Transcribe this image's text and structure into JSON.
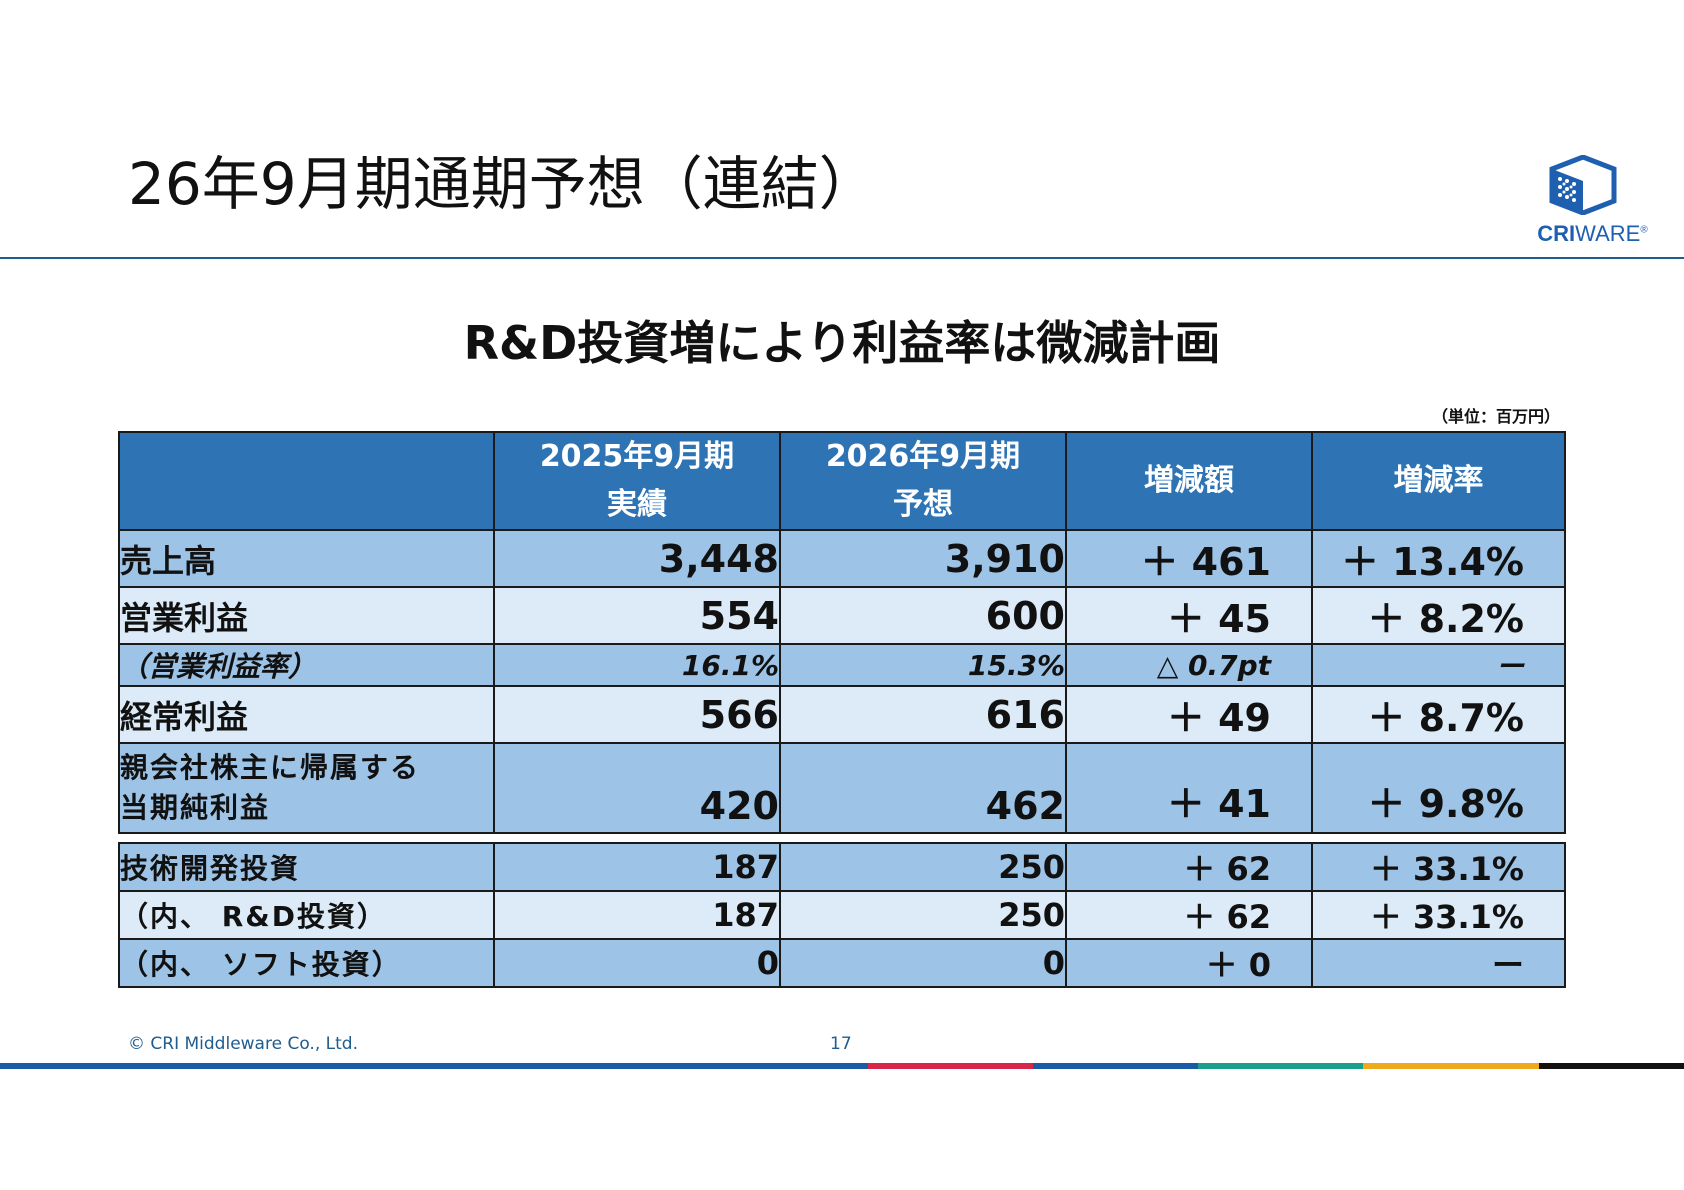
{
  "slide": {
    "title": "26年9月期通期予想（連結）",
    "headline": "R&D投資増により利益率は微減計画",
    "unit_note": "（単位：百万円）"
  },
  "logo": {
    "cri": "CRI",
    "ware": "WARE",
    "reg": "®"
  },
  "table": {
    "headers": [
      {
        "line1": "",
        "line2": ""
      },
      {
        "line1": "2025年9月期",
        "line2": "実績"
      },
      {
        "line1": "2026年9月期",
        "line2": "予想"
      },
      {
        "line1": "増減額",
        "line2": ""
      },
      {
        "line1": "増減率",
        "line2": ""
      }
    ],
    "rows": [
      {
        "label": "売上高",
        "fy2025": "3,448",
        "fy2026": "3,910",
        "change": "＋ 461",
        "rate": "＋ 13.4%"
      },
      {
        "label": "営業利益",
        "fy2025": "554",
        "fy2026": "600",
        "change": "＋ 45",
        "rate": "＋ 8.2%"
      },
      {
        "label": "（営業利益率）",
        "fy2025": "16.1%",
        "fy2026": "15.3%",
        "change": "△ 0.7pt",
        "rate": "ー"
      },
      {
        "label": "経常利益",
        "fy2025": "566",
        "fy2026": "616",
        "change": "＋ 49",
        "rate": "＋ 8.7%"
      },
      {
        "label_line1": "親会社株主に帰属する",
        "label_line2": "当期純利益",
        "fy2025": "420",
        "fy2026": "462",
        "change": "＋ 41",
        "rate": "＋ 9.8%"
      }
    ],
    "investment_rows": [
      {
        "label": "技術開発投資",
        "fy2025": "187",
        "fy2026": "250",
        "change": "＋ 62",
        "rate": "＋ 33.1%"
      },
      {
        "label": "（内、 R&D投資）",
        "fy2025": "187",
        "fy2026": "250",
        "change": "＋ 62",
        "rate": "＋ 33.1%"
      },
      {
        "label": "（内、 ソフト投資）",
        "fy2025": "0",
        "fy2026": "0",
        "change": "＋ 0",
        "rate": "ー"
      }
    ]
  },
  "footer": {
    "copyright": "© CRI Middleware Co., Ltd.",
    "page_number": "17",
    "bar_colors": [
      "#1a5ba6",
      "#d7264a",
      "#1a5ba6",
      "#1aa08a",
      "#f0a81c",
      "#111111"
    ]
  },
  "colors": {
    "header_blue": "#2e74b5",
    "row_light": "#dcebf7",
    "row_dark": "#9dc3e6",
    "rule": "#1f5c8f"
  }
}
